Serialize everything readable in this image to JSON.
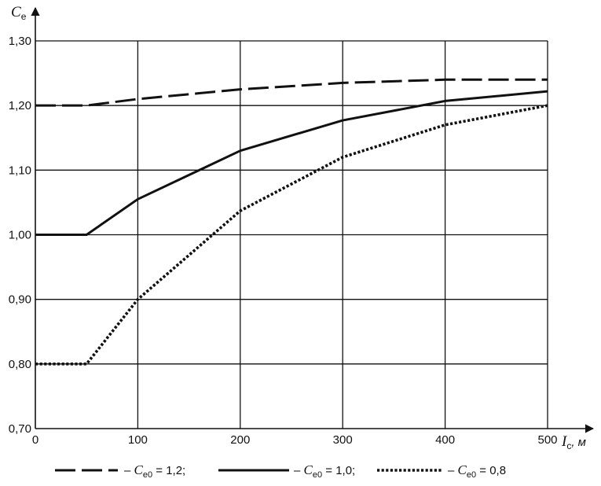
{
  "chart_data": {
    "type": "line",
    "ylabel": {
      "symbol": "C",
      "subscript": "e"
    },
    "xlabel": {
      "symbol": "I",
      "subscript": "c",
      "unit": ", м"
    },
    "xlim": [
      0,
      500
    ],
    "ylim": [
      0.7,
      1.3
    ],
    "x_ticks": [
      0,
      100,
      200,
      300,
      400,
      500
    ],
    "x_tick_labels": [
      "0",
      "100",
      "200",
      "300",
      "400",
      "500"
    ],
    "y_ticks": [
      0.7,
      0.8,
      0.9,
      1.0,
      1.1,
      1.2,
      1.3
    ],
    "y_tick_labels": [
      "0,70",
      "0,80",
      "0,90",
      "1,00",
      "1,10",
      "1,20",
      "1,30"
    ],
    "grid": true,
    "legend_position": "bottom",
    "series": [
      {
        "name": "C_e0 = 1,2",
        "legend": {
          "prefix": "– ",
          "symbol": "C",
          "subscript": "e0",
          "suffix": " = 1,2;"
        },
        "style": "dashed",
        "x": [
          0,
          50,
          100,
          200,
          300,
          400,
          500
        ],
        "y": [
          1.2,
          1.2,
          1.21,
          1.225,
          1.235,
          1.24,
          1.24
        ]
      },
      {
        "name": "C_e0 = 1,0",
        "legend": {
          "prefix": "– ",
          "symbol": "C",
          "subscript": "e0",
          "suffix": " = 1,0;"
        },
        "style": "solid",
        "x": [
          0,
          50,
          100,
          200,
          300,
          400,
          500
        ],
        "y": [
          1.0,
          1.0,
          1.055,
          1.13,
          1.177,
          1.207,
          1.222
        ]
      },
      {
        "name": "C_e0 = 0,8",
        "legend": {
          "prefix": "– ",
          "symbol": "C",
          "subscript": "e0",
          "suffix": " = 0,8"
        },
        "style": "dotted",
        "x": [
          0,
          50,
          100,
          200,
          300,
          400,
          500
        ],
        "y": [
          0.8,
          0.8,
          0.9,
          1.037,
          1.12,
          1.17,
          1.2
        ]
      }
    ]
  }
}
